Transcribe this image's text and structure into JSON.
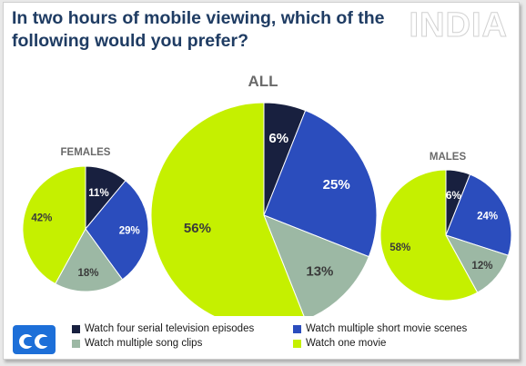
{
  "title": "In two hours of mobile viewing, which of the following would you prefer?",
  "watermark": "INDIA",
  "legend": [
    {
      "label": "Watch four serial television episodes",
      "color": "#18203f"
    },
    {
      "label": "Watch multiple short movie scenes",
      "color": "#2b4dbd"
    },
    {
      "label": "Watch multiple song clips",
      "color": "#9cb8a4"
    },
    {
      "label": "Watch one movie",
      "color": "#c5f000"
    }
  ],
  "chart_data": [
    {
      "type": "pie",
      "title": "FEMALES",
      "categories": [
        "Watch four serial television episodes",
        "Watch multiple short movie scenes",
        "Watch multiple song clips",
        "Watch one movie"
      ],
      "values": [
        11,
        29,
        18,
        42
      ],
      "labels": [
        "11%",
        "29%",
        "18%",
        "42%"
      ]
    },
    {
      "type": "pie",
      "title": "ALL",
      "categories": [
        "Watch four serial television episodes",
        "Watch multiple short movie scenes",
        "Watch multiple song clips",
        "Watch one movie"
      ],
      "values": [
        6,
        25,
        13,
        56
      ],
      "labels": [
        "6%",
        "25%",
        "13%",
        "56%"
      ]
    },
    {
      "type": "pie",
      "title": "MALES",
      "categories": [
        "Watch four serial television episodes",
        "Watch multiple short movie scenes",
        "Watch multiple song clips",
        "Watch one movie"
      ],
      "values": [
        6,
        24,
        12,
        58
      ],
      "labels": [
        "6%",
        "24%",
        "12%",
        "58%"
      ]
    }
  ]
}
